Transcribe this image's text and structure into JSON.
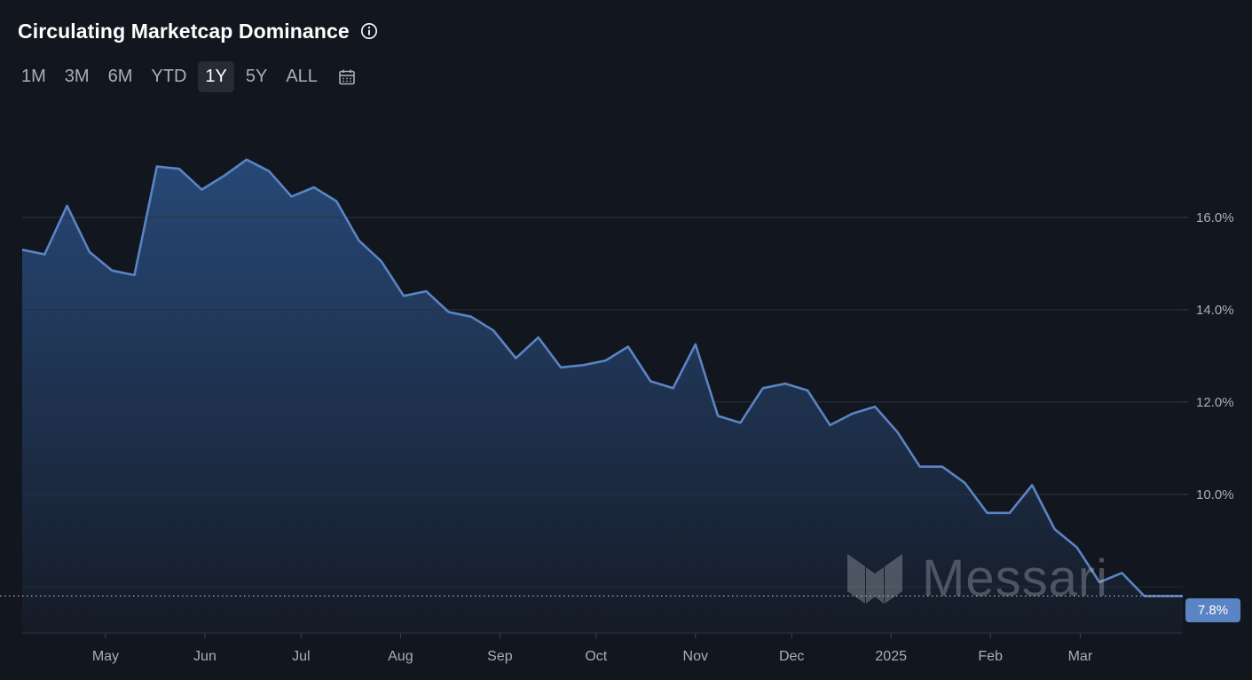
{
  "header": {
    "title": "Circulating Marketcap Dominance",
    "info_icon": "info-circle-icon"
  },
  "range_selector": {
    "options": [
      "1M",
      "3M",
      "6M",
      "YTD",
      "1Y",
      "5Y",
      "ALL"
    ],
    "selected": "1Y",
    "calendar_icon": "calendar-icon"
  },
  "watermark": {
    "text": "Messari",
    "logo_icon": "messari-logo-icon"
  },
  "current_value_label": "7.8%",
  "colors": {
    "background": "#12161f",
    "line": "#5b84c4",
    "fill_top": "#284a7a",
    "fill_bottom": "#151b26",
    "grid": "#2a3240",
    "badge": "#5b84c4"
  },
  "chart_data": {
    "type": "area",
    "title": "Circulating Marketcap Dominance",
    "unit": "%",
    "x": [
      "2024-04-05",
      "2024-04-12",
      "2024-04-19",
      "2024-04-26",
      "2024-05-03",
      "2024-05-10",
      "2024-05-17",
      "2024-05-24",
      "2024-05-31",
      "2024-06-07",
      "2024-06-14",
      "2024-06-21",
      "2024-06-28",
      "2024-07-05",
      "2024-07-12",
      "2024-07-19",
      "2024-07-26",
      "2024-08-02",
      "2024-08-09",
      "2024-08-16",
      "2024-08-23",
      "2024-08-30",
      "2024-09-06",
      "2024-09-13",
      "2024-09-20",
      "2024-09-27",
      "2024-10-04",
      "2024-10-11",
      "2024-10-18",
      "2024-10-25",
      "2024-11-01",
      "2024-11-08",
      "2024-11-15",
      "2024-11-22",
      "2024-11-29",
      "2024-12-06",
      "2024-12-13",
      "2024-12-20",
      "2024-12-27",
      "2025-01-03",
      "2025-01-10",
      "2025-01-17",
      "2025-01-24",
      "2025-01-31",
      "2025-02-07",
      "2025-02-14",
      "2025-02-21",
      "2025-02-28",
      "2025-03-07",
      "2025-03-14",
      "2025-03-21",
      "2025-03-28",
      "2025-04-02"
    ],
    "values": [
      15.3,
      15.2,
      16.25,
      15.25,
      14.85,
      14.75,
      17.1,
      17.05,
      16.6,
      16.9,
      17.25,
      17.0,
      16.45,
      16.65,
      16.35,
      15.5,
      15.05,
      14.3,
      14.4,
      13.95,
      13.85,
      13.55,
      12.95,
      13.4,
      12.75,
      12.8,
      12.9,
      13.2,
      12.45,
      12.3,
      13.25,
      11.7,
      11.55,
      12.3,
      12.4,
      12.25,
      11.5,
      11.75,
      11.9,
      11.35,
      10.6,
      10.6,
      10.25,
      9.6,
      9.6,
      10.2,
      9.25,
      8.85,
      8.1,
      8.3,
      7.8,
      7.8,
      7.8
    ],
    "current_value": 7.8,
    "x_ticks": [
      "May",
      "Jun",
      "Jul",
      "Aug",
      "Sep",
      "Oct",
      "Nov",
      "Dec",
      "2025",
      "Feb",
      "Mar"
    ],
    "y_ticks": [
      "10.0%",
      "12.0%",
      "14.0%",
      "16.0%"
    ],
    "y_tick_values": [
      10,
      12,
      14,
      16
    ],
    "ylim": [
      7.0,
      18.4
    ],
    "grid": "horizontal",
    "axis_position": "right",
    "legend": "none"
  }
}
